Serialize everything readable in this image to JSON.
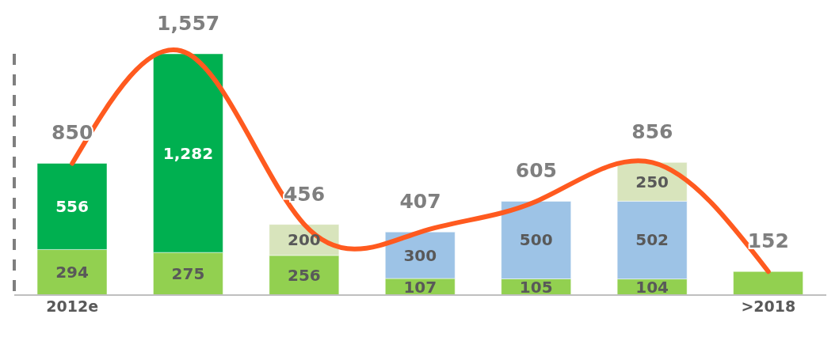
{
  "chart_data": {
    "type": "bar",
    "stacked": true,
    "categories": [
      "2012e",
      null,
      null,
      null,
      null,
      null,
      ">2018"
    ],
    "series": [
      {
        "color": "#92d050",
        "values": [
          294,
          275,
          256,
          107,
          105,
          104,
          152
        ],
        "value_labels": [
          "294",
          "275",
          "256",
          "107",
          "105",
          "104",
          null
        ]
      },
      {
        "color": "#00b050",
        "values": [
          556,
          1282,
          null,
          null,
          null,
          null,
          null
        ],
        "value_labels": [
          "556",
          "1,282",
          null,
          null,
          null,
          null,
          null
        ]
      },
      {
        "color": "#9dc3e6",
        "values": [
          null,
          null,
          null,
          300,
          500,
          502,
          null
        ],
        "value_labels": [
          null,
          null,
          null,
          "300",
          "500",
          "502",
          null
        ]
      },
      {
        "color": "#d8e4bc",
        "values": [
          null,
          null,
          200,
          null,
          null,
          250,
          null
        ],
        "value_labels": [
          null,
          null,
          "200",
          null,
          null,
          "250",
          null
        ]
      },
      {
        "type": "line",
        "color": "#ff5a1f",
        "values": [
          850,
          1557,
          456,
          407,
          605,
          856,
          152
        ]
      }
    ],
    "totals": [
      "850",
      "1,557",
      "456",
      "407",
      "605",
      "856",
      "152"
    ],
    "tick_labels": "x",
    "grid": false,
    "legend": false,
    "marker": "none",
    "line_style": "solid"
  }
}
